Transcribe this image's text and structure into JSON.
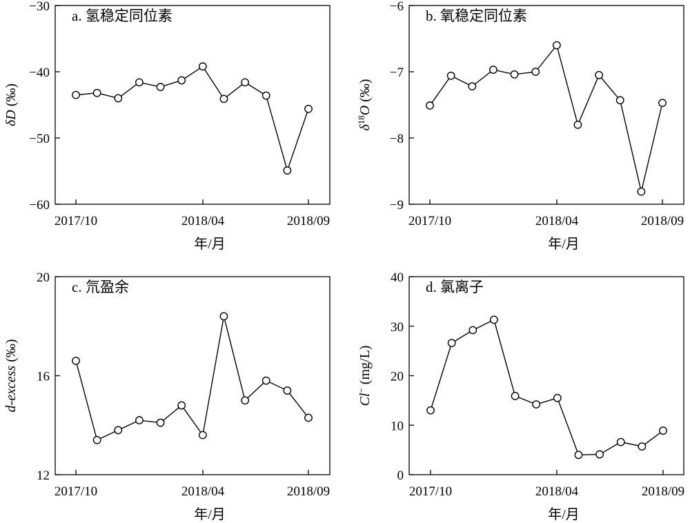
{
  "figure": {
    "panels": [
      {
        "id": "a",
        "title": "a. 氢稳定同位素",
        "ylabel_parts": [
          {
            "text": "δD",
            "style": "italic"
          },
          {
            "text": " (‰)",
            "style": "normal"
          }
        ],
        "xlabel": "年/月",
        "xtick_labels": [
          "2017/10",
          "2018/04",
          "2018/09"
        ],
        "yticks": [
          -30,
          -40,
          -50,
          -60
        ],
        "ytick_labels": [
          "−30",
          "−40",
          "−50",
          "−60"
        ]
      },
      {
        "id": "b",
        "title": "b. 氧稳定同位素",
        "ylabel_parts": [
          {
            "text": "δ",
            "style": "italic"
          },
          {
            "text": "18",
            "style": "sup"
          },
          {
            "text": "O",
            "style": "italic"
          },
          {
            "text": " (‰)",
            "style": "normal"
          }
        ],
        "xlabel": "年/月",
        "xtick_labels": [
          "2017/10",
          "2018/04",
          "2018/09"
        ],
        "yticks": [
          -6,
          -7,
          -8,
          -9
        ],
        "ytick_labels": [
          "−6",
          "−7",
          "−8",
          "−9"
        ]
      },
      {
        "id": "c",
        "title": "c. 氘盈余",
        "ylabel_parts": [
          {
            "text": "d-excess",
            "style": "italic"
          },
          {
            "text": " (‰)",
            "style": "normal"
          }
        ],
        "xlabel": "年/月",
        "xtick_labels": [
          "2017/10",
          "2018/04",
          "2018/09"
        ],
        "yticks": [
          20,
          16,
          12
        ],
        "ytick_labels": [
          "20",
          "16",
          "12"
        ]
      },
      {
        "id": "d",
        "title": "d. 氯离子",
        "ylabel_parts": [
          {
            "text": "Cl",
            "style": "italic"
          },
          {
            "text": "−",
            "style": "sup"
          },
          {
            "text": " (mg/L)",
            "style": "normal"
          }
        ],
        "xlabel": "年/月",
        "xtick_labels": [
          "2017/10",
          "2018/04",
          "2018/09"
        ],
        "yticks": [
          40,
          30,
          20,
          10,
          0
        ],
        "ytick_labels": [
          "40",
          "30",
          "20",
          "10",
          "0"
        ]
      }
    ]
  },
  "chart_data": [
    {
      "type": "line",
      "title": "a. 氢稳定同位素",
      "xlabel": "年/月",
      "ylabel": "δD (‰)",
      "x": [
        "2017/10",
        "2017/11",
        "2017/12",
        "2018/01",
        "2018/02",
        "2018/03",
        "2018/04",
        "2018/05",
        "2018/06",
        "2018/07",
        "2018/08",
        "2018/09"
      ],
      "values": [
        -43.5,
        -43.2,
        -44.0,
        -41.6,
        -42.3,
        -41.3,
        -39.2,
        -44.1,
        -41.6,
        -43.6,
        -54.9,
        -45.6
      ],
      "xlim": [
        "2017/10",
        "2018/09"
      ],
      "ylim": [
        -60,
        -30
      ],
      "grid": false,
      "marker": "open-circle",
      "color": "#000000"
    },
    {
      "type": "line",
      "title": "b. 氧稳定同位素",
      "xlabel": "年/月",
      "ylabel": "δ18O (‰)",
      "x": [
        "2017/10",
        "2017/11",
        "2017/12",
        "2018/01",
        "2018/02",
        "2018/03",
        "2018/04",
        "2018/05",
        "2018/06",
        "2018/07",
        "2018/08",
        "2018/09"
      ],
      "values": [
        -7.51,
        -7.06,
        -7.22,
        -6.97,
        -7.04,
        -7.0,
        -6.6,
        -7.8,
        -7.05,
        -7.43,
        -8.81,
        -7.47
      ],
      "xlim": [
        "2017/10",
        "2018/09"
      ],
      "ylim": [
        -9,
        -6
      ],
      "grid": false,
      "marker": "open-circle",
      "color": "#000000"
    },
    {
      "type": "line",
      "title": "c. 氘盈余",
      "xlabel": "年/月",
      "ylabel": "d-excess (‰)",
      "x": [
        "2017/10",
        "2017/11",
        "2017/12",
        "2018/01",
        "2018/02",
        "2018/03",
        "2018/04",
        "2018/05",
        "2018/06",
        "2018/07",
        "2018/08",
        "2018/09"
      ],
      "values": [
        16.6,
        13.4,
        13.8,
        14.2,
        14.1,
        14.8,
        13.6,
        18.4,
        15.0,
        15.8,
        15.4,
        14.3
      ],
      "xlim": [
        "2017/10",
        "2018/09"
      ],
      "ylim": [
        12,
        20
      ],
      "grid": false,
      "marker": "open-circle",
      "color": "#000000"
    },
    {
      "type": "line",
      "title": "d. 氯离子",
      "xlabel": "年/月",
      "ylabel": "Cl− (mg/L)",
      "x": [
        "2017/10",
        "2017/11",
        "2017/12",
        "2018/01",
        "2018/02",
        "2018/03",
        "2018/04",
        "2018/05",
        "2018/06",
        "2018/07",
        "2018/08",
        "2018/09"
      ],
      "values": [
        13.0,
        26.6,
        29.2,
        31.3,
        15.9,
        14.2,
        15.5,
        4.0,
        4.1,
        6.6,
        5.7,
        8.9
      ],
      "xlim": [
        "2017/10",
        "2018/09"
      ],
      "ylim": [
        0,
        40
      ],
      "grid": false,
      "marker": "open-circle",
      "color": "#000000"
    }
  ]
}
